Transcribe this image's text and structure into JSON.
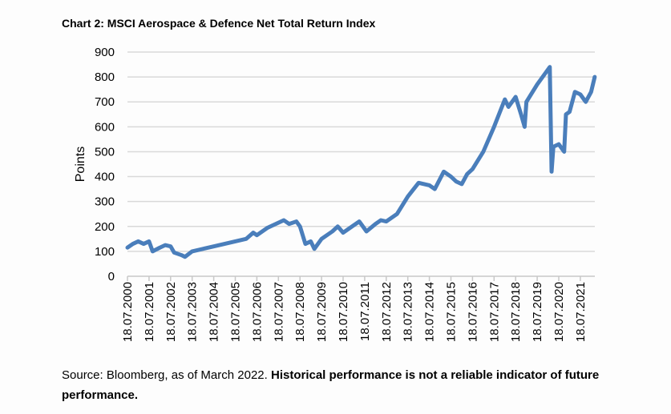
{
  "chart_data": {
    "type": "line",
    "title": "Chart 2: MSCI Aerospace & Defence Net Total Return Index",
    "xlabel": "",
    "ylabel": "Points",
    "ylim": [
      0,
      900
    ],
    "yticks": [
      0,
      100,
      200,
      300,
      400,
      500,
      600,
      700,
      800,
      900
    ],
    "xticks": [
      "18.07.2000",
      "18.07.2001",
      "18.07.2002",
      "18.07.2003",
      "18.07.2004",
      "18.07.2005",
      "18.07.2006",
      "18.07.2007",
      "18.07.2008",
      "18.07.2009",
      "18.07.2010",
      "18.07.2011",
      "18.07.2012",
      "18.07.2013",
      "18.07.2014",
      "18.07.2015",
      "18.07.2016",
      "18.07.2017",
      "18.07.2018",
      "18.07.2019",
      "18.07.2020",
      "18.07.2021"
    ],
    "grid": true,
    "color": "#4a7ebb",
    "series": [
      {
        "x": [
          "2000-07",
          "2000-10",
          "2001-01",
          "2001-04",
          "2001-07",
          "2001-09",
          "2002-01",
          "2002-04",
          "2002-07",
          "2002-09",
          "2003-01",
          "2003-03",
          "2003-07",
          "2004-01",
          "2004-07",
          "2005-01",
          "2005-07",
          "2006-01",
          "2006-05",
          "2006-07",
          "2007-01",
          "2007-07",
          "2007-10",
          "2008-01",
          "2008-05",
          "2008-07",
          "2008-10",
          "2009-01",
          "2009-03",
          "2009-07",
          "2010-01",
          "2010-04",
          "2010-07",
          "2011-01",
          "2011-04",
          "2011-08",
          "2012-01",
          "2012-04",
          "2012-07",
          "2013-01",
          "2013-07",
          "2014-01",
          "2014-07",
          "2014-10",
          "2015-03",
          "2015-07",
          "2015-10",
          "2016-01",
          "2016-04",
          "2016-07",
          "2017-01",
          "2017-07",
          "2018-01",
          "2018-03",
          "2018-07",
          "2018-10",
          "2018-12",
          "2019-01",
          "2019-07",
          "2020-01",
          "2020-02",
          "2020-03",
          "2020-04",
          "2020-07",
          "2020-10",
          "2020-11",
          "2021-01",
          "2021-04",
          "2021-07",
          "2021-10",
          "2022-01",
          "2022-03"
        ],
        "values": [
          115,
          130,
          140,
          130,
          140,
          100,
          115,
          125,
          120,
          95,
          85,
          78,
          100,
          110,
          120,
          130,
          140,
          150,
          175,
          165,
          195,
          215,
          225,
          210,
          220,
          200,
          130,
          140,
          110,
          150,
          180,
          200,
          175,
          205,
          220,
          180,
          210,
          225,
          220,
          250,
          320,
          375,
          365,
          350,
          420,
          400,
          380,
          370,
          410,
          430,
          500,
          600,
          710,
          680,
          720,
          650,
          600,
          700,
          770,
          830,
          840,
          420,
          520,
          530,
          500,
          650,
          660,
          740,
          730,
          700,
          740,
          800
        ]
      }
    ]
  },
  "footer": {
    "source": "Source: Bloomberg, as of March 2022. ",
    "disclaimer": "Historical performance is not a reliable indicator of future performance."
  }
}
